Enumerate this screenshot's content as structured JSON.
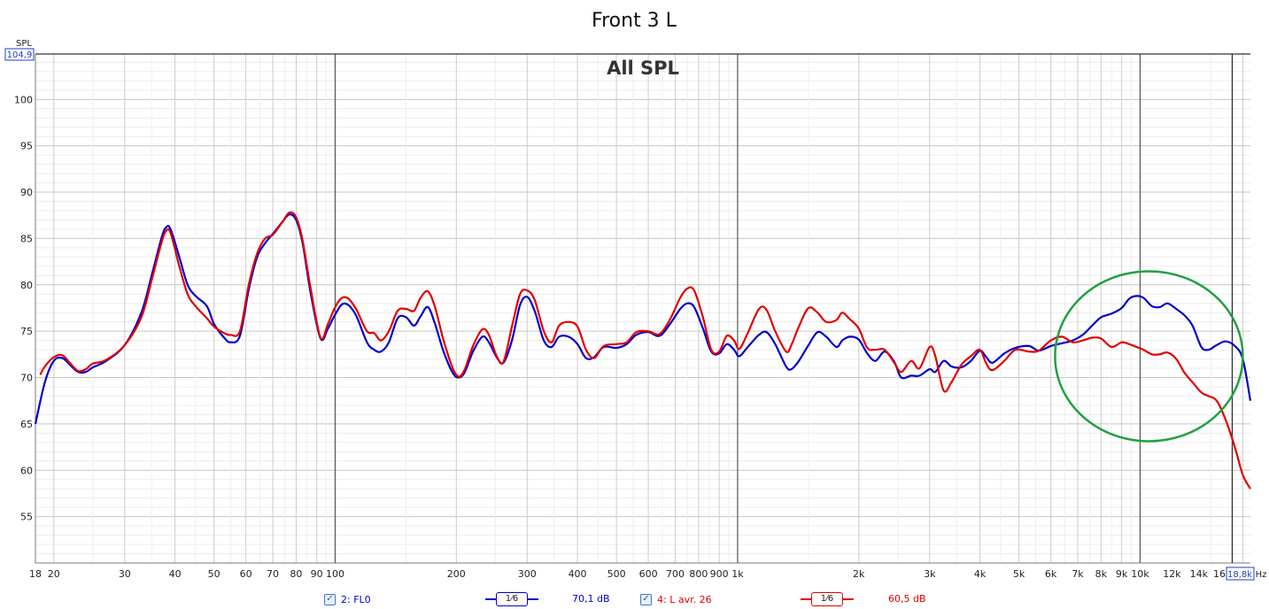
{
  "chart_data": {
    "type": "line",
    "title": "Front 3 L",
    "subtitle": "All SPL",
    "ylabel": "SPL",
    "xlabel": "Hz",
    "xscale": "log",
    "xlim": [
      18,
      18800
    ],
    "ylim": [
      50,
      104.9
    ],
    "grid": true,
    "y_ticks": [
      {
        "v": 55,
        "label": "55"
      },
      {
        "v": 60,
        "label": "60"
      },
      {
        "v": 65,
        "label": "65"
      },
      {
        "v": 70,
        "label": "70"
      },
      {
        "v": 75,
        "label": "75"
      },
      {
        "v": 80,
        "label": "80"
      },
      {
        "v": 85,
        "label": "85"
      },
      {
        "v": 90,
        "label": "90"
      },
      {
        "v": 95,
        "label": "95"
      },
      {
        "v": 100,
        "label": "100"
      }
    ],
    "y_max_label": "104,9",
    "x_ticks": [
      {
        "v": 18,
        "label": "18"
      },
      {
        "v": 20,
        "label": "20"
      },
      {
        "v": 30,
        "label": "30"
      },
      {
        "v": 40,
        "label": "40"
      },
      {
        "v": 50,
        "label": "50"
      },
      {
        "v": 60,
        "label": "60"
      },
      {
        "v": 70,
        "label": "70"
      },
      {
        "v": 80,
        "label": "80"
      },
      {
        "v": 90,
        "label": "90"
      },
      {
        "v": 100,
        "label": "100"
      },
      {
        "v": 200,
        "label": "200"
      },
      {
        "v": 300,
        "label": "300"
      },
      {
        "v": 400,
        "label": "400"
      },
      {
        "v": 500,
        "label": "500"
      },
      {
        "v": 600,
        "label": "600"
      },
      {
        "v": 700,
        "label": "700"
      },
      {
        "v": 800,
        "label": "800"
      },
      {
        "v": 900,
        "label": "900"
      },
      {
        "v": 1000,
        "label": "1k"
      },
      {
        "v": 2000,
        "label": "2k"
      },
      {
        "v": 3000,
        "label": "3k"
      },
      {
        "v": 4000,
        "label": "4k"
      },
      {
        "v": 5000,
        "label": "5k"
      },
      {
        "v": 6000,
        "label": "6k"
      },
      {
        "v": 7000,
        "label": "7k"
      },
      {
        "v": 8000,
        "label": "8k"
      },
      {
        "v": 9000,
        "label": "9k"
      },
      {
        "v": 10000,
        "label": "10k"
      },
      {
        "v": 12000,
        "label": "12k"
      },
      {
        "v": 14000,
        "label": "14k"
      },
      {
        "v": 16000,
        "label": "16k"
      }
    ],
    "x_max_label": "18,8k",
    "series": [
      {
        "name": "2: FL0",
        "color": "#0000cc",
        "smoothing": "1⁄6",
        "level": "70,1 dB",
        "points": [
          [
            18,
            65.0
          ],
          [
            19,
            69.5
          ],
          [
            20,
            71.8
          ],
          [
            21,
            72.1
          ],
          [
            22,
            71.3
          ],
          [
            23,
            70.6
          ],
          [
            24,
            70.6
          ],
          [
            25,
            71.1
          ],
          [
            27,
            71.8
          ],
          [
            30,
            73.5
          ],
          [
            33,
            77.0
          ],
          [
            35,
            81.0
          ],
          [
            37,
            85.0
          ],
          [
            38,
            86.2
          ],
          [
            39,
            86.0
          ],
          [
            41,
            83.0
          ],
          [
            43,
            80.0
          ],
          [
            45,
            78.8
          ],
          [
            48,
            77.7
          ],
          [
            50,
            75.8
          ],
          [
            53,
            74.3
          ],
          [
            55,
            73.8
          ],
          [
            58,
            74.5
          ],
          [
            61,
            79.5
          ],
          [
            64,
            83.0
          ],
          [
            67,
            84.5
          ],
          [
            70,
            85.5
          ],
          [
            74,
            86.8
          ],
          [
            77,
            87.6
          ],
          [
            80,
            87.0
          ],
          [
            83,
            84.5
          ],
          [
            87,
            79.0
          ],
          [
            92,
            74.2
          ],
          [
            96,
            75.3
          ],
          [
            100,
            76.8
          ],
          [
            104,
            77.9
          ],
          [
            108,
            77.8
          ],
          [
            113,
            76.6
          ],
          [
            120,
            73.8
          ],
          [
            125,
            73.0
          ],
          [
            130,
            72.8
          ],
          [
            136,
            73.8
          ],
          [
            143,
            76.4
          ],
          [
            150,
            76.5
          ],
          [
            157,
            75.6
          ],
          [
            163,
            76.6
          ],
          [
            170,
            77.6
          ],
          [
            177,
            75.8
          ],
          [
            186,
            72.8
          ],
          [
            196,
            70.5
          ],
          [
            203,
            70.0
          ],
          [
            210,
            70.6
          ],
          [
            220,
            72.8
          ],
          [
            232,
            74.4
          ],
          [
            241,
            73.8
          ],
          [
            252,
            72.2
          ],
          [
            262,
            71.6
          ],
          [
            275,
            74.0
          ],
          [
            288,
            77.8
          ],
          [
            300,
            78.7
          ],
          [
            313,
            77.2
          ],
          [
            330,
            74.0
          ],
          [
            345,
            73.3
          ],
          [
            360,
            74.4
          ],
          [
            380,
            74.4
          ],
          [
            400,
            73.6
          ],
          [
            420,
            72.1
          ],
          [
            440,
            72.2
          ],
          [
            465,
            73.3
          ],
          [
            500,
            73.2
          ],
          [
            530,
            73.6
          ],
          [
            560,
            74.6
          ],
          [
            600,
            74.9
          ],
          [
            640,
            74.5
          ],
          [
            680,
            75.8
          ],
          [
            720,
            77.4
          ],
          [
            750,
            78.0
          ],
          [
            780,
            77.6
          ],
          [
            820,
            75.3
          ],
          [
            860,
            72.8
          ],
          [
            900,
            72.6
          ],
          [
            940,
            73.6
          ],
          [
            980,
            73.0
          ],
          [
            1010,
            72.3
          ],
          [
            1060,
            73.3
          ],
          [
            1130,
            74.6
          ],
          [
            1180,
            74.9
          ],
          [
            1240,
            73.6
          ],
          [
            1320,
            71.2
          ],
          [
            1360,
            70.9
          ],
          [
            1420,
            71.8
          ],
          [
            1500,
            73.5
          ],
          [
            1580,
            74.9
          ],
          [
            1660,
            74.4
          ],
          [
            1760,
            73.3
          ],
          [
            1820,
            74.0
          ],
          [
            1900,
            74.4
          ],
          [
            2000,
            74.1
          ],
          [
            2100,
            72.6
          ],
          [
            2200,
            71.8
          ],
          [
            2320,
            72.8
          ],
          [
            2450,
            71.7
          ],
          [
            2550,
            70.0
          ],
          [
            2700,
            70.2
          ],
          [
            2830,
            70.2
          ],
          [
            3000,
            70.9
          ],
          [
            3100,
            70.6
          ],
          [
            3250,
            71.8
          ],
          [
            3400,
            71.2
          ],
          [
            3600,
            71.1
          ],
          [
            3800,
            71.8
          ],
          [
            4000,
            72.9
          ],
          [
            4150,
            72.2
          ],
          [
            4300,
            71.6
          ],
          [
            4600,
            72.6
          ],
          [
            4900,
            73.2
          ],
          [
            5300,
            73.4
          ],
          [
            5600,
            72.9
          ],
          [
            6000,
            73.4
          ],
          [
            6400,
            73.7
          ],
          [
            6800,
            74.0
          ],
          [
            7200,
            74.6
          ],
          [
            7600,
            75.6
          ],
          [
            8000,
            76.5
          ],
          [
            8500,
            76.9
          ],
          [
            9000,
            77.5
          ],
          [
            9400,
            78.5
          ],
          [
            9800,
            78.8
          ],
          [
            10200,
            78.6
          ],
          [
            10700,
            77.7
          ],
          [
            11200,
            77.6
          ],
          [
            11700,
            78.0
          ],
          [
            12300,
            77.4
          ],
          [
            12900,
            76.7
          ],
          [
            13500,
            75.6
          ],
          [
            14200,
            73.3
          ],
          [
            14800,
            73.0
          ],
          [
            15500,
            73.5
          ],
          [
            16300,
            73.9
          ],
          [
            17200,
            73.4
          ],
          [
            18000,
            72.0
          ],
          [
            18800,
            67.5
          ]
        ]
      },
      {
        "name": "4: L avr. 26",
        "color": "#e00000",
        "smoothing": "1⁄6",
        "level": "60,5 dB",
        "points": [
          [
            18.5,
            70.3
          ],
          [
            19,
            71.2
          ],
          [
            20,
            72.2
          ],
          [
            21,
            72.4
          ],
          [
            22,
            71.5
          ],
          [
            23,
            70.7
          ],
          [
            24,
            70.9
          ],
          [
            25,
            71.5
          ],
          [
            27,
            71.9
          ],
          [
            30,
            73.5
          ],
          [
            33,
            76.5
          ],
          [
            35,
            80.5
          ],
          [
            37,
            84.5
          ],
          [
            38,
            85.8
          ],
          [
            39,
            85.6
          ],
          [
            41,
            82.0
          ],
          [
            43,
            79.0
          ],
          [
            45,
            77.7
          ],
          [
            48,
            76.4
          ],
          [
            50,
            75.5
          ],
          [
            53,
            74.8
          ],
          [
            55,
            74.6
          ],
          [
            58,
            75.0
          ],
          [
            61,
            80.0
          ],
          [
            64,
            83.4
          ],
          [
            67,
            85.0
          ],
          [
            70,
            85.4
          ],
          [
            74,
            86.8
          ],
          [
            77,
            87.8
          ],
          [
            80,
            87.3
          ],
          [
            83,
            84.8
          ],
          [
            87,
            79.5
          ],
          [
            92,
            74.3
          ],
          [
            96,
            75.8
          ],
          [
            100,
            77.6
          ],
          [
            104,
            78.6
          ],
          [
            108,
            78.5
          ],
          [
            113,
            77.3
          ],
          [
            120,
            75.0
          ],
          [
            125,
            74.8
          ],
          [
            130,
            74.0
          ],
          [
            136,
            75.0
          ],
          [
            143,
            77.2
          ],
          [
            150,
            77.4
          ],
          [
            157,
            77.2
          ],
          [
            163,
            78.6
          ],
          [
            170,
            79.3
          ],
          [
            177,
            77.6
          ],
          [
            186,
            74.0
          ],
          [
            196,
            71.0
          ],
          [
            203,
            70.1
          ],
          [
            210,
            70.9
          ],
          [
            220,
            73.4
          ],
          [
            232,
            75.2
          ],
          [
            241,
            74.6
          ],
          [
            252,
            72.3
          ],
          [
            262,
            71.7
          ],
          [
            275,
            75.5
          ],
          [
            288,
            79.0
          ],
          [
            300,
            79.4
          ],
          [
            313,
            78.4
          ],
          [
            330,
            75.0
          ],
          [
            345,
            73.8
          ],
          [
            360,
            75.6
          ],
          [
            380,
            76.0
          ],
          [
            400,
            75.5
          ],
          [
            420,
            73.0
          ],
          [
            440,
            72.1
          ],
          [
            465,
            73.4
          ],
          [
            500,
            73.6
          ],
          [
            530,
            73.8
          ],
          [
            560,
            74.9
          ],
          [
            600,
            75.0
          ],
          [
            640,
            74.7
          ],
          [
            680,
            76.3
          ],
          [
            720,
            78.6
          ],
          [
            750,
            79.6
          ],
          [
            780,
            79.4
          ],
          [
            820,
            76.5
          ],
          [
            860,
            73.0
          ],
          [
            900,
            72.8
          ],
          [
            940,
            74.5
          ],
          [
            980,
            74.0
          ],
          [
            1010,
            73.1
          ],
          [
            1060,
            74.8
          ],
          [
            1130,
            77.4
          ],
          [
            1180,
            77.3
          ],
          [
            1240,
            75.0
          ],
          [
            1320,
            72.8
          ],
          [
            1360,
            73.5
          ],
          [
            1420,
            75.5
          ],
          [
            1500,
            77.5
          ],
          [
            1580,
            77.0
          ],
          [
            1660,
            76.0
          ],
          [
            1760,
            76.2
          ],
          [
            1820,
            77.0
          ],
          [
            1900,
            76.3
          ],
          [
            2000,
            75.3
          ],
          [
            2100,
            73.2
          ],
          [
            2200,
            73.0
          ],
          [
            2320,
            73.0
          ],
          [
            2450,
            71.6
          ],
          [
            2550,
            70.6
          ],
          [
            2700,
            71.8
          ],
          [
            2830,
            71.0
          ],
          [
            3000,
            73.3
          ],
          [
            3100,
            72.3
          ],
          [
            3250,
            68.6
          ],
          [
            3400,
            69.5
          ],
          [
            3600,
            71.4
          ],
          [
            3800,
            72.3
          ],
          [
            4000,
            73.0
          ],
          [
            4150,
            71.5
          ],
          [
            4300,
            70.8
          ],
          [
            4600,
            71.8
          ],
          [
            4900,
            73.0
          ],
          [
            5300,
            72.8
          ],
          [
            5600,
            72.9
          ],
          [
            6000,
            74.0
          ],
          [
            6400,
            74.4
          ],
          [
            6800,
            73.8
          ],
          [
            7200,
            74.0
          ],
          [
            7600,
            74.3
          ],
          [
            8000,
            74.2
          ],
          [
            8500,
            73.3
          ],
          [
            9000,
            73.8
          ],
          [
            9400,
            73.6
          ],
          [
            9800,
            73.3
          ],
          [
            10200,
            73.0
          ],
          [
            10700,
            72.5
          ],
          [
            11200,
            72.5
          ],
          [
            11700,
            72.7
          ],
          [
            12300,
            72.0
          ],
          [
            12900,
            70.5
          ],
          [
            13500,
            69.5
          ],
          [
            14200,
            68.4
          ],
          [
            14800,
            68.0
          ],
          [
            15500,
            67.5
          ],
          [
            16300,
            65.5
          ],
          [
            17200,
            62.5
          ],
          [
            18000,
            59.5
          ],
          [
            18800,
            58.0
          ]
        ]
      }
    ],
    "annotation_ellipse": {
      "cx_hz": 10000,
      "cy_db": 72.3,
      "color": "#22a040"
    }
  }
}
